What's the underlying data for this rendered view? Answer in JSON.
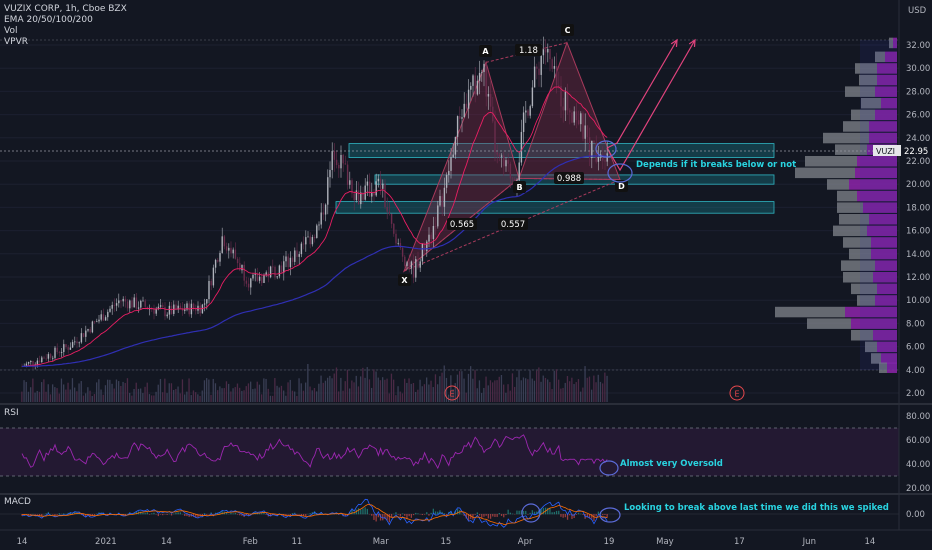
{
  "header": {
    "symbol_line": "VUZIX CORP, 1h, Cboe BZX",
    "ema_line": "EMA 20/50/100/200",
    "vol_label": "Vol",
    "vpvr_label": "VPVR"
  },
  "price_axis": {
    "currency": "USD",
    "ticks": [
      "32.00",
      "30.00",
      "28.00",
      "26.00",
      "24.00",
      "22.00",
      "20.00",
      "18.00",
      "16.00",
      "14.00",
      "12.00",
      "10.00",
      "8.00",
      "6.00",
      "4.00",
      "2.00"
    ],
    "last_price_tag": "VUZI",
    "last_price": "22.95"
  },
  "time_axis": {
    "ticks": [
      "14",
      "2021",
      "14",
      "Feb",
      "11",
      "Mar",
      "15",
      "Apr",
      "19",
      "May",
      "17",
      "Jun",
      "14"
    ]
  },
  "colors": {
    "background": "#131722",
    "up": "#b0b3bc",
    "down": "#6a2c4c",
    "ema_fast": "#e91e63",
    "ema_slow": "#2f2fb3",
    "zone": "#1a8c99",
    "harmonic": "#8a2c4a",
    "projection": "#e0437d",
    "rsi": "#9c27b0",
    "vpvr_up": "#7b7e86",
    "vpvr_down": "#8e24aa",
    "annotation": "#29d3e0"
  },
  "harmonic_points": {
    "x": "X",
    "a": "A",
    "b": "B",
    "c": "C",
    "d": "D"
  },
  "ratios": {
    "xa_b": "0.565",
    "ab_c": "1.18",
    "bc_d": "0.988",
    "xb_d": "0.557"
  },
  "annotations": {
    "breaks": "Depends if it breaks below or not",
    "oversold": "Almost very Oversold",
    "macd_note": "Looking to break above last time we did this we spiked"
  },
  "earnings_marker": "E",
  "rsi": {
    "label": "RSI",
    "ticks": [
      "80.00",
      "60.00",
      "40.00",
      "20.00"
    ]
  },
  "macd": {
    "label": "MACD",
    "ticks": [
      "0.00"
    ]
  },
  "chart_data": {
    "type": "line",
    "title": "VUZIX CORP, 1h, Cboe BZX",
    "ylim": [
      2,
      34
    ],
    "x": [
      "2020-12-14",
      "2020-12-24",
      "2021-01-04",
      "2021-01-14",
      "2021-01-22",
      "2021-01-26",
      "2021-02-01",
      "2021-02-08",
      "2021-02-11",
      "2021-02-16",
      "2021-02-19",
      "2021-02-24",
      "2021-03-01",
      "2021-03-04",
      "2021-03-08",
      "2021-03-12",
      "2021-03-15",
      "2021-03-18",
      "2021-03-23",
      "2021-03-26",
      "2021-03-30",
      "2021-04-01",
      "2021-04-05",
      "2021-04-08",
      "2021-04-12",
      "2021-04-15",
      "2021-04-19"
    ],
    "series": [
      {
        "values": [
          4.3,
          6.0,
          10.0,
          9.0,
          9.5,
          15.5,
          11.5,
          13.0,
          14.0,
          16.5,
          23.0,
          19.0,
          20.0,
          15.0,
          12.5,
          16.0,
          20.0,
          26.0,
          30.0,
          22.0,
          20.5,
          26.0,
          32.0,
          28.0,
          26.0,
          23.0,
          22.95
        ]
      }
    ],
    "harmonic": {
      "X": 12.5,
      "A": 30.5,
      "B": 20.5,
      "C": 32.2,
      "D": 20.4
    },
    "zones": [
      [
        22.3,
        23.5
      ],
      [
        20.0,
        20.8
      ],
      [
        17.5,
        18.5
      ]
    ],
    "rsi_levels": [
      70,
      30
    ],
    "rsi_ylim": [
      20,
      85
    ]
  }
}
